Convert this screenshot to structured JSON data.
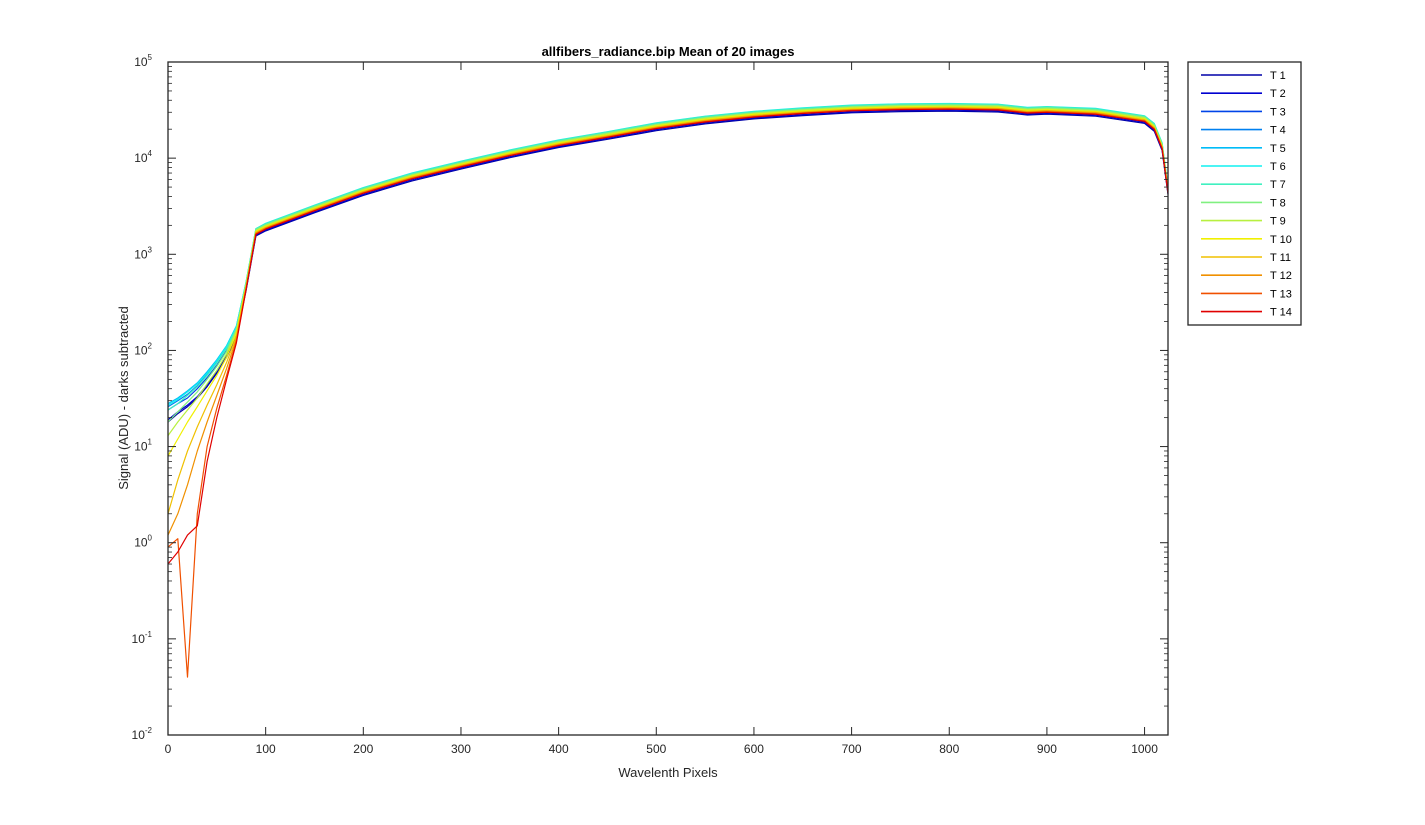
{
  "chart_data": {
    "type": "line",
    "title": "allfibers_radiance.bip  Mean of 20 images",
    "xlabel": "Wavelenth Pixels",
    "ylabel": "Signal (ADU) - darks subtracted",
    "xlim": [
      0,
      1024
    ],
    "ylim": [
      0.01,
      100000
    ],
    "yscale": "log",
    "grid": false,
    "legend_position": "outside-top-right",
    "xticks": [
      0,
      100,
      200,
      300,
      400,
      500,
      600,
      700,
      800,
      900,
      1000
    ],
    "yticks": [
      {
        "base": "10",
        "exp": "-2",
        "value": 0.01
      },
      {
        "base": "10",
        "exp": "-1",
        "value": 0.1
      },
      {
        "base": "10",
        "exp": "0",
        "value": 1
      },
      {
        "base": "10",
        "exp": "1",
        "value": 10
      },
      {
        "base": "10",
        "exp": "2",
        "value": 100
      },
      {
        "base": "10",
        "exp": "3",
        "value": 1000
      },
      {
        "base": "10",
        "exp": "4",
        "value": 10000
      },
      {
        "base": "10",
        "exp": "5",
        "value": 100000
      }
    ],
    "x": [
      0,
      10,
      20,
      30,
      40,
      50,
      60,
      70,
      80,
      90,
      100,
      150,
      200,
      250,
      300,
      350,
      400,
      450,
      500,
      550,
      600,
      650,
      700,
      750,
      800,
      850,
      880,
      900,
      950,
      1000,
      1010,
      1018,
      1024
    ],
    "series": [
      {
        "name": "T 1",
        "color": "#0000a8",
        "values": [
          18,
          22,
          26,
          32,
          42,
          58,
          85,
          140,
          420,
          1550,
          1750,
          2700,
          4100,
          5800,
          7700,
          10100,
          12900,
          15700,
          19300,
          22700,
          25600,
          27700,
          29600,
          30500,
          30800,
          30200,
          28100,
          28700,
          27300,
          23000,
          19000,
          12000,
          4200
        ]
      },
      {
        "name": "T 2",
        "color": "#0000d0",
        "values": [
          19,
          23,
          27,
          33,
          44,
          60,
          88,
          145,
          430,
          1580,
          1790,
          2760,
          4200,
          5950,
          7900,
          10350,
          13200,
          16100,
          19800,
          23300,
          26200,
          28400,
          30300,
          31300,
          31600,
          31000,
          28800,
          29400,
          28000,
          23600,
          19500,
          12300,
          4300
        ]
      },
      {
        "name": "T 3",
        "color": "#0044e8",
        "values": [
          24,
          28,
          32,
          40,
          52,
          70,
          100,
          160,
          470,
          1680,
          1900,
          2930,
          4470,
          6330,
          8400,
          11000,
          14000,
          17100,
          21000,
          24700,
          27800,
          30100,
          32200,
          33200,
          33500,
          32900,
          30600,
          31200,
          29700,
          25000,
          20700,
          13000,
          4500
        ]
      },
      {
        "name": "T 4",
        "color": "#0080f0",
        "values": [
          26,
          30,
          35,
          43,
          56,
          75,
          106,
          170,
          490,
          1740,
          1970,
          3040,
          4640,
          6560,
          8700,
          11400,
          14500,
          17700,
          21800,
          25600,
          28800,
          31200,
          33400,
          34400,
          34700,
          34100,
          31700,
          32300,
          30800,
          25900,
          21400,
          13500,
          4700
        ]
      },
      {
        "name": "T 5",
        "color": "#00bcf8",
        "values": [
          28,
          32,
          38,
          46,
          60,
          80,
          112,
          180,
          510,
          1800,
          2040,
          3150,
          4800,
          6800,
          9000,
          11800,
          15000,
          18300,
          22600,
          26500,
          29800,
          32300,
          34600,
          35600,
          35900,
          35300,
          32800,
          33400,
          31900,
          26800,
          22200,
          14000,
          4900
        ]
      },
      {
        "name": "T 6",
        "color": "#10f0f0",
        "values": [
          27,
          31,
          37,
          45,
          58,
          78,
          110,
          178,
          520,
          1850,
          2100,
          3240,
          4940,
          7000,
          9300,
          12150,
          15450,
          18850,
          23300,
          27300,
          30700,
          33300,
          35600,
          36700,
          37000,
          36400,
          33800,
          34400,
          32900,
          27600,
          22900,
          14400,
          5000
        ]
      },
      {
        "name": "T 7",
        "color": "#40f0c0",
        "values": [
          24,
          28,
          34,
          42,
          55,
          74,
          105,
          172,
          515,
          1840,
          2080,
          3210,
          4900,
          6940,
          9200,
          12050,
          15300,
          18700,
          23100,
          27100,
          30400,
          33000,
          35300,
          36400,
          36700,
          36100,
          33500,
          34100,
          32600,
          27400,
          22700,
          14300,
          5000
        ]
      },
      {
        "name": "T 8",
        "color": "#80f080",
        "values": [
          18,
          23,
          29,
          37,
          50,
          68,
          98,
          165,
          500,
          1800,
          2030,
          3130,
          4780,
          6770,
          8970,
          11750,
          14950,
          18250,
          22500,
          26400,
          29700,
          32200,
          34400,
          35500,
          35800,
          35200,
          32700,
          33300,
          31800,
          26700,
          22100,
          13900,
          4900
        ]
      },
      {
        "name": "T 9",
        "color": "#b8f040",
        "values": [
          13,
          18,
          24,
          32,
          45,
          62,
          92,
          158,
          485,
          1760,
          1990,
          3070,
          4690,
          6640,
          8800,
          11520,
          14650,
          17900,
          22050,
          25900,
          29100,
          31600,
          33700,
          34800,
          35100,
          34500,
          32000,
          32600,
          31100,
          26200,
          21700,
          13600,
          4800
        ]
      },
      {
        "name": "T 10",
        "color": "#f0f000",
        "values": [
          8,
          12,
          18,
          26,
          38,
          55,
          85,
          150,
          470,
          1720,
          1950,
          3010,
          4590,
          6500,
          8620,
          11280,
          14350,
          17500,
          21600,
          25300,
          28500,
          30900,
          33000,
          34000,
          34300,
          33700,
          31300,
          31900,
          30500,
          25600,
          21200,
          13300,
          4700
        ]
      },
      {
        "name": "T 11",
        "color": "#f0c000",
        "values": [
          2,
          4.5,
          9,
          16,
          27,
          44,
          75,
          140,
          455,
          1690,
          1910,
          2950,
          4500,
          6370,
          8450,
          11060,
          14060,
          17150,
          21150,
          24800,
          27900,
          30300,
          32300,
          33300,
          33600,
          33000,
          30700,
          31300,
          29900,
          25100,
          20800,
          13100,
          4600
        ]
      },
      {
        "name": "T 12",
        "color": "#f09000",
        "values": [
          1.2,
          2,
          4,
          9,
          18,
          34,
          65,
          132,
          445,
          1660,
          1880,
          2900,
          4420,
          6260,
          8300,
          10870,
          13820,
          16850,
          20800,
          24400,
          27400,
          29800,
          31800,
          32800,
          33100,
          32500,
          30200,
          30800,
          29400,
          24700,
          20400,
          12900,
          4500
        ]
      },
      {
        "name": "T 13",
        "color": "#f05000",
        "values": [
          0.9,
          1.1,
          0.04,
          2,
          10,
          25,
          55,
          125,
          440,
          1630,
          1850,
          2860,
          4360,
          6170,
          8180,
          10710,
          13620,
          16600,
          20500,
          24000,
          27000,
          29400,
          31400,
          32300,
          32600,
          32000,
          29700,
          30300,
          28900,
          24300,
          20100,
          12700,
          4400
        ]
      },
      {
        "name": "T 14",
        "color": "#e00000",
        "values": [
          0.6,
          0.8,
          1.2,
          1.5,
          7,
          20,
          50,
          120,
          430,
          1610,
          1830,
          2830,
          4310,
          6100,
          8090,
          10590,
          13470,
          16420,
          20270,
          23770,
          26750,
          29100,
          31100,
          32000,
          32300,
          31700,
          29400,
          30000,
          28600,
          24100,
          19900,
          12500,
          4300
        ]
      }
    ]
  }
}
